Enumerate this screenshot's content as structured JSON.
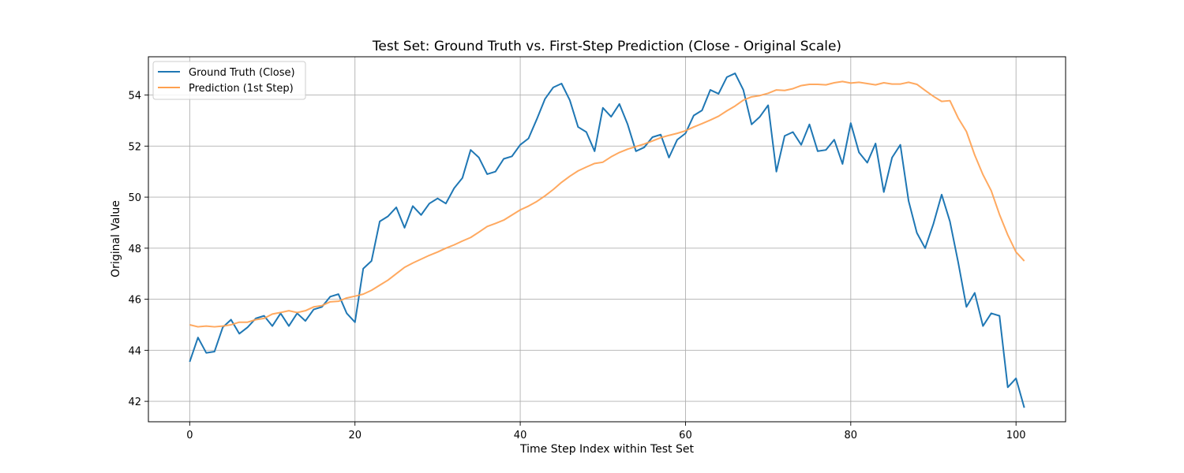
{
  "chart_data": {
    "type": "line",
    "title": "Test Set: Ground Truth vs. First-Step Prediction (Close - Original Scale)",
    "xlabel": "Time Step Index within Test Set",
    "ylabel": "Original Value",
    "xlim": [
      -5,
      106
    ],
    "ylim": [
      41.2,
      55.5
    ],
    "xticks": [
      0,
      20,
      40,
      60,
      80,
      100
    ],
    "yticks": [
      42,
      44,
      46,
      48,
      50,
      52,
      54
    ],
    "grid": true,
    "legend_position": "top-left",
    "series": [
      {
        "name": "Ground Truth (Close)",
        "color": "#1f77b4",
        "values": [
          43.55,
          44.5,
          43.9,
          43.95,
          44.9,
          45.2,
          44.65,
          44.9,
          45.25,
          45.35,
          44.95,
          45.45,
          44.95,
          45.45,
          45.15,
          45.6,
          45.7,
          46.1,
          46.2,
          45.45,
          45.1,
          47.2,
          47.5,
          49.05,
          49.25,
          49.6,
          48.8,
          49.65,
          49.3,
          49.75,
          49.95,
          49.75,
          50.35,
          50.75,
          51.85,
          51.55,
          50.9,
          51.0,
          51.5,
          51.6,
          52.05,
          52.3,
          53.05,
          53.85,
          54.3,
          54.45,
          53.8,
          52.75,
          52.55,
          51.8,
          53.5,
          53.15,
          53.65,
          52.85,
          51.8,
          51.95,
          52.35,
          52.45,
          51.55,
          52.25,
          52.5,
          53.2,
          53.4,
          54.2,
          54.05,
          54.7,
          54.85,
          54.2,
          52.85,
          53.15,
          53.6,
          51.0,
          52.4,
          52.55,
          52.05,
          52.85,
          51.8,
          51.85,
          52.25,
          51.3,
          52.9,
          51.75,
          51.35,
          52.1,
          50.2,
          51.55,
          52.05,
          49.85,
          48.6,
          48.0,
          48.95,
          50.1,
          49.05,
          47.45,
          45.7,
          46.25,
          44.95,
          45.45,
          45.35,
          42.55,
          42.9,
          41.75
        ]
      },
      {
        "name": "Prediction (1st Step)",
        "color": "#ffa04f",
        "values": [
          45.0,
          44.92,
          44.95,
          44.92,
          44.95,
          45.0,
          45.1,
          45.1,
          45.2,
          45.25,
          45.42,
          45.48,
          45.55,
          45.48,
          45.55,
          45.7,
          45.75,
          45.9,
          45.92,
          46.05,
          46.12,
          46.2,
          46.35,
          46.55,
          46.75,
          47.0,
          47.25,
          47.42,
          47.57,
          47.72,
          47.85,
          48.0,
          48.13,
          48.28,
          48.42,
          48.63,
          48.85,
          48.97,
          49.1,
          49.3,
          49.5,
          49.65,
          49.83,
          50.05,
          50.3,
          50.58,
          50.82,
          51.03,
          51.18,
          51.32,
          51.37,
          51.58,
          51.75,
          51.88,
          51.98,
          52.08,
          52.2,
          52.33,
          52.42,
          52.5,
          52.6,
          52.75,
          52.88,
          53.02,
          53.17,
          53.38,
          53.57,
          53.8,
          53.93,
          53.98,
          54.07,
          54.2,
          54.18,
          54.25,
          54.37,
          54.42,
          54.42,
          54.4,
          54.48,
          54.53,
          54.47,
          54.5,
          54.45,
          54.4,
          54.48,
          54.43,
          54.43,
          54.5,
          54.42,
          54.18,
          53.95,
          53.75,
          53.78,
          53.1,
          52.57,
          51.65,
          50.88,
          50.25,
          49.32,
          48.52,
          47.85,
          47.5
        ]
      }
    ]
  }
}
